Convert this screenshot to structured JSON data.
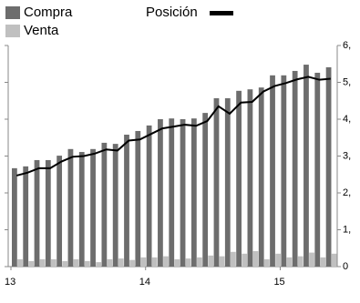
{
  "chart_data": {
    "type": "bar",
    "categories": [
      "13",
      null,
      null,
      null,
      null,
      null,
      null,
      null,
      null,
      null,
      null,
      null,
      "14",
      null,
      null,
      null,
      null,
      null,
      null,
      null,
      null,
      null,
      null,
      null,
      "15",
      null,
      null,
      null,
      null
    ],
    "series": [
      {
        "name": "Compra",
        "type": "bar",
        "color": "#6d6d6d",
        "values": [
          2.67,
          2.72,
          2.89,
          2.89,
          3.01,
          3.19,
          3.11,
          3.19,
          3.36,
          3.33,
          3.58,
          3.68,
          3.83,
          4.0,
          4.02,
          4.0,
          4.02,
          4.17,
          4.57,
          4.57,
          4.77,
          4.81,
          4.86,
          5.19,
          5.19,
          5.31,
          5.48,
          5.26,
          5.41
        ]
      },
      {
        "name": "Venta",
        "type": "bar",
        "color": "#c0c0c0",
        "values": [
          0.2,
          0.15,
          0.2,
          0.2,
          0.15,
          0.2,
          0.15,
          0.12,
          0.2,
          0.22,
          0.18,
          0.25,
          0.25,
          0.28,
          0.2,
          0.22,
          0.25,
          0.3,
          0.28,
          0.4,
          0.35,
          0.42,
          0.2,
          0.35,
          0.25,
          0.28,
          0.38,
          0.25,
          0.35
        ]
      },
      {
        "name": "Posición",
        "type": "line",
        "color": "#000000",
        "axis": "y2",
        "values": [
          2.47,
          2.55,
          2.67,
          2.67,
          2.85,
          2.98,
          3.0,
          3.07,
          3.18,
          3.15,
          3.42,
          3.45,
          3.6,
          3.75,
          3.8,
          3.85,
          3.82,
          3.95,
          4.35,
          4.15,
          4.45,
          4.47,
          4.75,
          4.9,
          4.98,
          5.08,
          5.15,
          5.07,
          5.1
        ]
      }
    ],
    "ylim": [
      0,
      6
    ],
    "y2lim": [
      0,
      6
    ],
    "y2ticks": [
      0,
      {
        "value": 1,
        "label": "1,"
      },
      {
        "value": 2,
        "label": "2,"
      },
      {
        "value": 3,
        "label": "3,"
      },
      {
        "value": 4,
        "label": "4,"
      },
      {
        "value": 5,
        "label": "5,"
      },
      {
        "value": 6,
        "label": "6,"
      }
    ],
    "grid": false
  }
}
